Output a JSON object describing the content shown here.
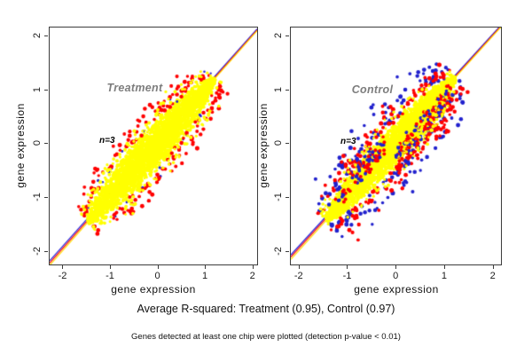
{
  "figure": {
    "background": "#ffffff",
    "axis_color": "#3c3c3c",
    "caption_r_squared": "Average R-squared: Treatment (0.95), Control (0.97)",
    "caption_note": "Genes detected at least one chip were plotted (detection p-value < 0.01)"
  },
  "chart_data": [
    {
      "type": "scatter",
      "panel": "left",
      "title": "Treatment",
      "title_color": "#7d7d7d",
      "annotation": "n=3",
      "xlabel": "gene expression",
      "ylabel": "gene expression",
      "xlim": [
        -2.27,
        2.1
      ],
      "ylim": [
        -2.25,
        2.15
      ],
      "x_ticks": [
        -2,
        -1,
        0,
        1,
        2
      ],
      "y_ticks": [
        -2,
        -1,
        0,
        1,
        2
      ],
      "r_squared": 0.95,
      "grid": false,
      "legend": "none",
      "point_colors": {
        "dense": "#ffff00",
        "outlier1": "#ff0000",
        "outlier2": "#2121cd"
      },
      "reference_lines": [
        {
          "color": "#2222dd",
          "slope": 0.985,
          "intercept": 0.055
        },
        {
          "color": "#ff0000",
          "slope": 0.99,
          "intercept": 0.025
        },
        {
          "color": "#ffdd00",
          "slope": 0.997,
          "intercept": -0.003
        }
      ],
      "render_params": {
        "seed": 20,
        "cloud": {
          "n": 3200,
          "center": -0.13,
          "half_length": 1.33,
          "width": 0.52,
          "radius": 1.7
        },
        "halo": {
          "n": 130,
          "spread": 0.1,
          "radius": 1.8
        },
        "red": {
          "n": 185,
          "spread": 0.17,
          "radius": 2.1
        },
        "blue": {
          "n": 22,
          "spread": 0.05,
          "radius": 1.4
        },
        "wing": null,
        "spur": null
      }
    },
    {
      "type": "scatter",
      "panel": "right",
      "title": "Control",
      "title_color": "#7d7d7d",
      "annotation": "n=3",
      "xlabel": "gene expression",
      "ylabel": "gene expression",
      "xlim": [
        -2.16,
        2.17
      ],
      "ylim": [
        -2.25,
        2.15
      ],
      "x_ticks": [
        -2,
        -1,
        0,
        1,
        2
      ],
      "y_ticks": [
        -2,
        -1,
        0,
        1,
        2
      ],
      "r_squared": 0.97,
      "grid": false,
      "legend": "none",
      "point_colors": {
        "dense": "#ffff00",
        "outlier1": "#ff0000",
        "outlier2": "#2121cd"
      },
      "reference_lines": [
        {
          "color": "#2222dd",
          "slope": 0.985,
          "intercept": 0.055
        },
        {
          "color": "#ff0000",
          "slope": 0.99,
          "intercept": 0.025
        },
        {
          "color": "#ffdd00",
          "slope": 0.997,
          "intercept": -0.003
        }
      ],
      "render_params": {
        "seed": 77,
        "cloud": {
          "n": 3200,
          "center": -0.1,
          "half_length": 1.32,
          "width": 0.44,
          "radius": 1.7
        },
        "halo": {
          "n": 90,
          "spread": 0.08,
          "radius": 1.7
        },
        "red": {
          "n": 210,
          "spread": 0.2,
          "radius": 2.1
        },
        "blue": {
          "n": 190,
          "spread": 0.3,
          "radius": 2.1
        },
        "wing": {
          "n": 330,
          "u_min": 0.0,
          "u_max": 1.15,
          "drop_base": 0.15,
          "drop_rand": 0.5
        },
        "spur": {
          "n": 90,
          "u_min": -1.15,
          "u_max": -0.25,
          "rise_base": 0.08,
          "rise_rand": 0.45
        }
      }
    }
  ]
}
